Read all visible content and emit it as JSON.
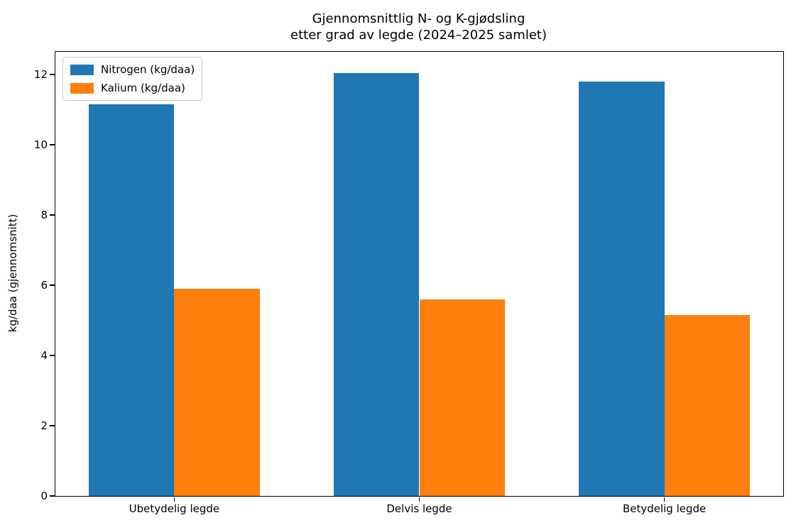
{
  "chart_data": {
    "type": "bar",
    "title": "Gjennomsnittlig N- og K-gjødsling\netter grad av legde (2024–2025 samlet)",
    "categories": [
      "Ubetydelig legde",
      "Delvis legde",
      "Betydelig legde"
    ],
    "series": [
      {
        "name": "Nitrogen (kg/daa)",
        "color": "#1f77b4",
        "values": [
          11.15,
          12.05,
          11.8
        ]
      },
      {
        "name": "Kalium (kg/daa)",
        "color": "#ff7f0e",
        "values": [
          5.9,
          5.6,
          5.15
        ]
      }
    ],
    "xlabel": "",
    "ylabel": "kg/daa (gjennomsnitt)",
    "yticks": [
      0,
      2,
      4,
      6,
      8,
      10,
      12
    ],
    "ylim": [
      0,
      12.65
    ],
    "xlim": [
      -0.485,
      2.485
    ],
    "bar_width": 0.35,
    "grid": false,
    "legend_position": "upper-left",
    "background_color": "#ffffff",
    "axis_color": "#000000"
  }
}
